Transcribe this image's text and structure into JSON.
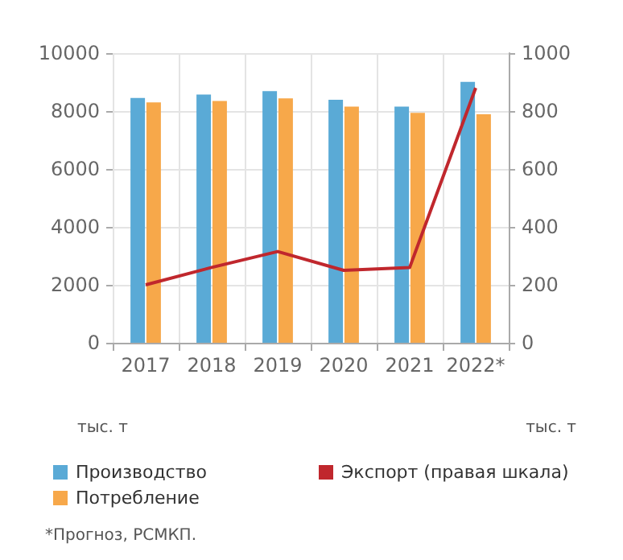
{
  "chart_data": {
    "type": "bar",
    "categories": [
      "2017",
      "2018",
      "2019",
      "2020",
      "2021",
      "2022*"
    ],
    "series": [
      {
        "name": "Производство",
        "color": "#5aaad6",
        "values": [
          8450,
          8570,
          8690,
          8390,
          8150,
          9010
        ]
      },
      {
        "name": "Потребление",
        "color": "#f7a84a",
        "values": [
          8300,
          8350,
          8440,
          8150,
          7940,
          7890
        ]
      },
      {
        "name": "Экспорт (правая шкала)",
        "type": "line",
        "axis": "y2",
        "color": "#c0272d",
        "values": [
          200,
          260,
          315,
          250,
          260,
          880
        ]
      }
    ],
    "ylim": [
      0,
      10000
    ],
    "yticks": [
      0,
      2000,
      4000,
      6000,
      8000,
      10000
    ],
    "y2lim": [
      0,
      1000
    ],
    "y2ticks": [
      0,
      200,
      400,
      600,
      800,
      1000
    ],
    "ylabel": "тыс. т",
    "y2label": "тыс. т",
    "grid": true,
    "legend": "bottom",
    "marker": "none",
    "line_style": "solid",
    "annotations": [
      "*Прогноз, РСМКП."
    ]
  }
}
